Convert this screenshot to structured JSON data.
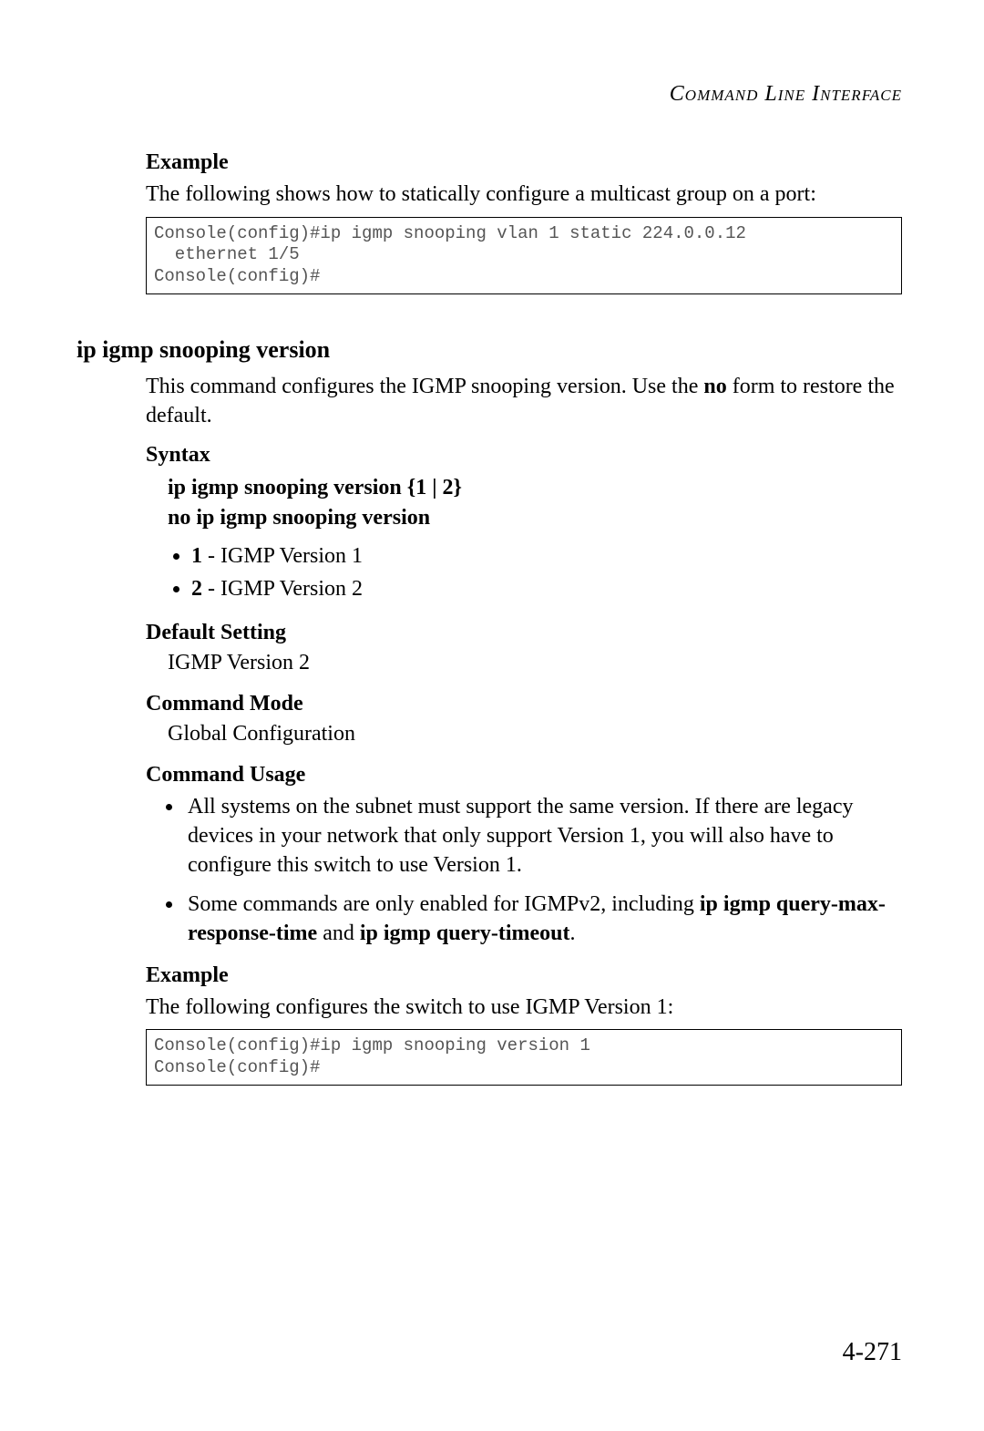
{
  "header": "Command Line Interface",
  "sections": {
    "example1": {
      "heading": "Example",
      "intro": "The following shows how to statically configure a multicast group on a port:",
      "code": "Console(config)#ip igmp snooping vlan 1 static 224.0.0.12\n  ethernet 1/5\nConsole(config)#"
    },
    "command": {
      "heading": "ip igmp snooping version",
      "description_pre": "This command configures the IGMP snooping version. Use the ",
      "description_bold": "no",
      "description_post": " form to restore the default.",
      "syntax": {
        "heading": "Syntax",
        "line1": "ip igmp snooping version {1 | 2}",
        "line2": "no ip igmp snooping version",
        "options": [
          {
            "bold": "1",
            "text": " - IGMP Version 1"
          },
          {
            "bold": "2",
            "text": " - IGMP Version 2"
          }
        ]
      },
      "default_setting": {
        "heading": "Default Setting",
        "value": "IGMP Version 2"
      },
      "command_mode": {
        "heading": "Command Mode",
        "value": "Global Configuration"
      },
      "command_usage": {
        "heading": "Command Usage",
        "items": [
          {
            "t1": "All systems on the subnet must support the same version. If there are legacy devices in your network that only support Version 1, you will also have to configure this switch to use Version 1."
          },
          {
            "t1": "Some commands are only enabled for IGMPv2, including ",
            "b1": "ip igmp query-max-response-time",
            "t2": " and ",
            "b2": "ip igmp query-timeout",
            "t3": "."
          }
        ]
      },
      "example2": {
        "heading": "Example",
        "intro": "The following configures the switch to use IGMP Version 1:",
        "code": "Console(config)#ip igmp snooping version 1\nConsole(config)#"
      }
    }
  },
  "page_number": "4-271"
}
